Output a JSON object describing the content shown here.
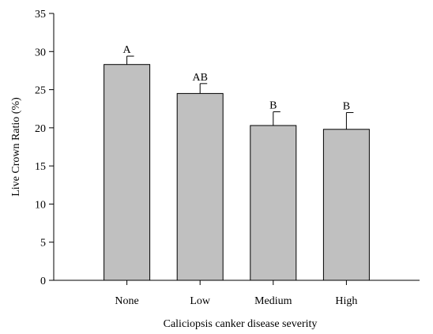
{
  "chart_data": {
    "type": "bar",
    "title": "",
    "xlabel": "Caliciopsis canker disease severity",
    "ylabel": "Live Crown Ratio (%)",
    "categories": [
      "None",
      "Low",
      "Medium",
      "High"
    ],
    "values": [
      28.3,
      24.5,
      20.3,
      19.8
    ],
    "error_upper": [
      1.1,
      1.3,
      1.8,
      2.2
    ],
    "significance_labels": [
      "A",
      "AB",
      "B",
      "B"
    ],
    "ylim": [
      0,
      35
    ],
    "yticks": [
      0,
      5,
      10,
      15,
      20,
      25,
      30,
      35
    ],
    "ytick_labels": [
      "0",
      "5",
      "10",
      "15",
      "20",
      "25",
      "30",
      "35"
    ],
    "bar_color": "#c0c0c0",
    "grid": false
  }
}
